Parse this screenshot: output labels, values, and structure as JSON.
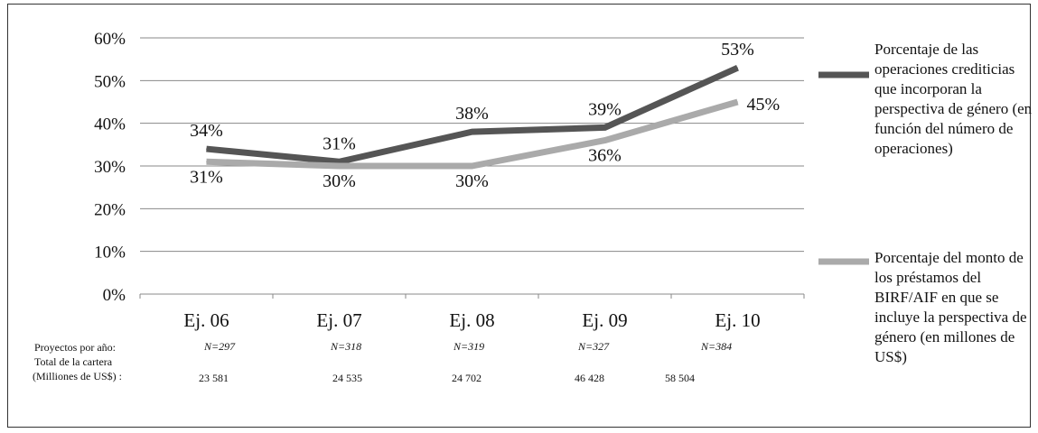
{
  "chart_data": {
    "type": "line",
    "categories": [
      "Ej. 06",
      "Ej. 07",
      "Ej. 08",
      "Ej. 09",
      "Ej. 10"
    ],
    "ylim": [
      0,
      60
    ],
    "yticks": [
      "0%",
      "10%",
      "20%",
      "30%",
      "40%",
      "50%",
      "60%"
    ],
    "grid": true,
    "legend_position": "right",
    "series": [
      {
        "name": "Porcentaje de las operaciones crediticias que incorporan la perspectiva de género (en función del número de operaciones)",
        "values": [
          34,
          31,
          38,
          39,
          53
        ],
        "labels": [
          "34%",
          "31%",
          "38%",
          "39%",
          "53%"
        ],
        "color": "#555555"
      },
      {
        "name": "Porcentaje del monto de los préstamos del BIRF/AIF en que se incluye la perspectiva de género (en millones de US$)",
        "values": [
          31,
          30,
          30,
          36,
          45
        ],
        "labels": [
          "31%",
          "30%",
          "30%",
          "36%",
          "45%"
        ],
        "color": "#aaaaaa"
      }
    ]
  },
  "footnote": {
    "projects_label": "Proyectos por año:",
    "projects": [
      "N=297",
      "N=318",
      "N=319",
      "N=327",
      "N=384"
    ],
    "portfolio_label_line1": "Total de la cartera",
    "portfolio_label_line2": "(Milliones de US$) :",
    "portfolio": [
      "23 581",
      "24 535",
      "24 702",
      "46 428",
      "58 504"
    ]
  }
}
